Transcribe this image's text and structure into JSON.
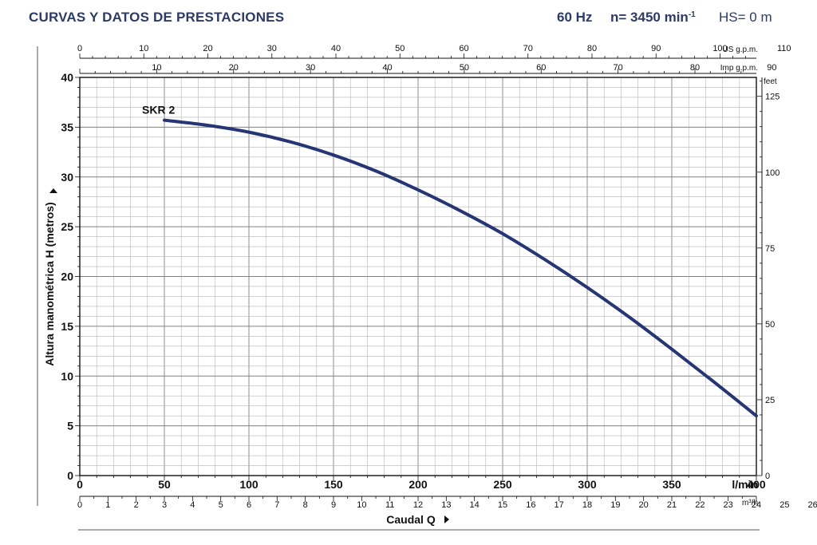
{
  "header": {
    "title": "CURVAS Y DATOS DE PRESTACIONES",
    "frequency": "60 Hz",
    "speed": "n= 3450 min",
    "speed_sup": "-1",
    "hs": "HS= 0 m"
  },
  "colors": {
    "curve": "#253575",
    "header": "#2b3a6b",
    "grid": "#9a9a9a",
    "axis": "#111111"
  },
  "chart_data": {
    "type": "line",
    "series": [
      {
        "name": "SKR 2",
        "x": [
          50,
          75,
          100,
          125,
          150,
          175,
          200,
          225,
          250,
          275,
          300,
          325,
          350,
          375,
          400
        ],
        "y": [
          35.7,
          35.2,
          34.5,
          33.5,
          32.2,
          30.6,
          28.7,
          26.6,
          24.3,
          21.7,
          18.9,
          15.9,
          12.7,
          9.4,
          6.0
        ]
      }
    ],
    "x_axis": {
      "label": "Caudal Q",
      "unit": "l/min",
      "range": [
        0,
        400
      ],
      "ticks": [
        "0",
        "50",
        "100",
        "150",
        "200",
        "250",
        "300",
        "350",
        "400"
      ]
    },
    "y_axis": {
      "label": "Altura manométrica H (metros)",
      "range": [
        0,
        40
      ],
      "ticks": [
        "0",
        "5",
        "10",
        "15",
        "20",
        "25",
        "30",
        "35",
        "40"
      ]
    },
    "y_axis_right": {
      "unit": "feet",
      "ticks": [
        "0",
        "25",
        "50",
        "75",
        "100",
        "125"
      ]
    },
    "x_axis_m3h": {
      "unit": "m³/h",
      "ticks": [
        "0",
        "1",
        "2",
        "3",
        "4",
        "5",
        "6",
        "7",
        "8",
        "9",
        "10",
        "11",
        "12",
        "13",
        "14",
        "15",
        "16",
        "17",
        "18",
        "19",
        "20",
        "21",
        "22",
        "23",
        "24",
        "25",
        "26"
      ]
    },
    "x_axis_usgpm": {
      "unit": "US g.p.m.",
      "ticks": [
        "0",
        "10",
        "20",
        "30",
        "40",
        "50",
        "60",
        "70",
        "80",
        "90",
        "100",
        "110"
      ]
    },
    "x_axis_impgpm": {
      "unit": "Imp g.p.m.",
      "ticks": [
        "10",
        "20",
        "30",
        "40",
        "50",
        "60",
        "70",
        "80",
        "90"
      ]
    },
    "grid": true
  }
}
